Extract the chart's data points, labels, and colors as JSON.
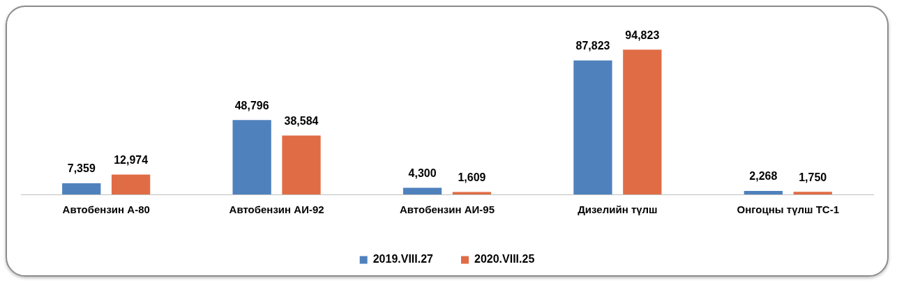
{
  "chart_data": {
    "type": "bar",
    "categories": [
      "Автобензин А-80",
      "Автобензин АИ-92",
      "Автобензин АИ-95",
      "Дизелийн түлш",
      "Онгоцны түлш ТС-1"
    ],
    "series": [
      {
        "name": "2019.VIII.27",
        "color": "#4f81bd",
        "values": [
          7359,
          48796,
          4300,
          87823,
          2268
        ],
        "value_labels": [
          "7,359",
          "48,796",
          "4,300",
          "87,823",
          "2,268"
        ]
      },
      {
        "name": "2020.VIII.25",
        "color": "#e06c45",
        "values": [
          12974,
          38584,
          1609,
          94823,
          1750
        ],
        "value_labels": [
          "12,974",
          "38,584",
          "1,609",
          "94,823",
          "1,750"
        ]
      }
    ],
    "legend": "bottom",
    "grid": false
  }
}
